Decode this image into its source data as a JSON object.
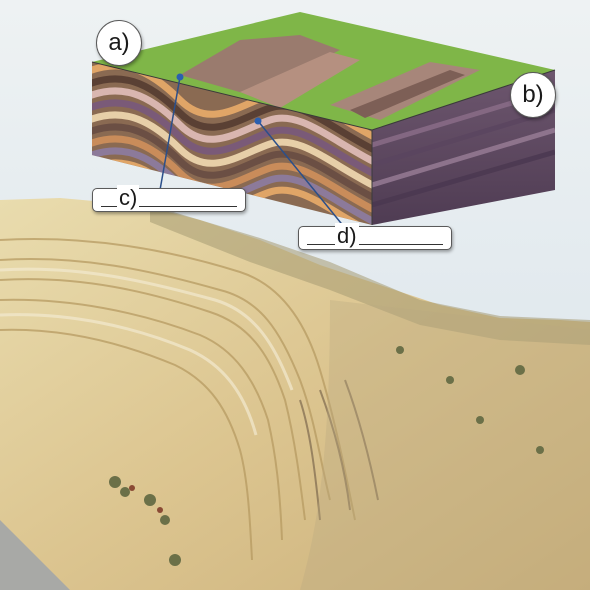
{
  "labels": {
    "a": "a)",
    "b": "b)",
    "c": "c)",
    "d": "d)"
  },
  "colors": {
    "sky": "#dfe7ec",
    "grass": "#7fb648",
    "rock_pale": "#e8d9a8",
    "rock_tan": "#cdb277",
    "strata_brown": "#8a6a52",
    "strata_purple": "#7a5a78",
    "strata_pink": "#d9b6b0",
    "strata_orange": "#e0a567"
  }
}
